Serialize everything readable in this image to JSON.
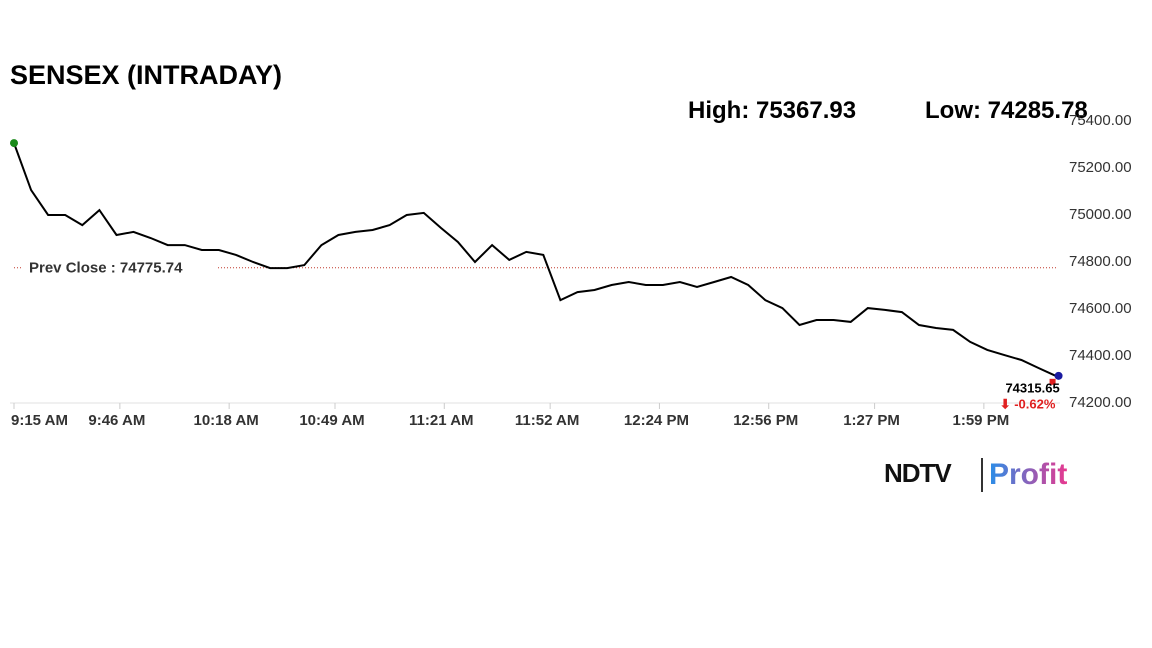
{
  "chart_data": {
    "type": "line",
    "title": "SENSEX (INTRADAY)",
    "high_label": "High:",
    "high": 75367.93,
    "low_label": "Low:",
    "low": 74285.78,
    "prev_close_label": "Prev Close :",
    "prev_close": 74775.74,
    "change_label": "⬇ -0.62%",
    "color": "#000000",
    "x": [
      "9:15 AM",
      "9:20 AM",
      "9:25 AM",
      "9:30 AM",
      "9:35 AM",
      "9:40 AM",
      "9:45 AM",
      "9:50 AM",
      "9:55 AM",
      "10:00 AM",
      "10:05 AM",
      "10:10 AM",
      "10:15 AM",
      "10:20 AM",
      "10:25 AM",
      "10:30 AM",
      "10:35 AM",
      "10:40 AM",
      "10:45 AM",
      "10:50 AM",
      "10:55 AM",
      "11:00 AM",
      "11:05 AM",
      "11:10 AM",
      "11:15 AM",
      "11:20 AM",
      "11:25 AM",
      "11:30 AM",
      "11:35 AM",
      "11:40 AM",
      "11:45 AM",
      "11:50 AM",
      "11:55 AM",
      "12:00 PM",
      "12:05 PM",
      "12:10 PM",
      "12:15 PM",
      "12:20 PM",
      "12:25 PM",
      "12:30 PM",
      "12:35 PM",
      "12:40 PM",
      "12:45 PM",
      "12:50 PM",
      "12:55 PM",
      "1:00 PM",
      "1:05 PM",
      "1:10 PM",
      "1:15 PM",
      "1:20 PM",
      "1:25 PM",
      "1:30 PM",
      "1:35 PM",
      "1:40 PM",
      "1:45 PM",
      "1:50 PM",
      "1:55 PM",
      "2:00 PM",
      "2:05 PM",
      "2:10 PM",
      "2:15 PM",
      "2:20 PM"
    ],
    "values": [
      75306,
      75106,
      75000,
      75000,
      74957,
      75021,
      74915,
      74928,
      74902,
      74872,
      74872,
      74851,
      74851,
      74830,
      74800,
      74774,
      74774,
      74787,
      74872,
      74915,
      74928,
      74936,
      74957,
      75000,
      75009,
      74945,
      74885,
      74800,
      74872,
      74809,
      74843,
      74830,
      74638,
      74672,
      74681,
      74702,
      74715,
      74702,
      74702,
      74715,
      74694,
      74715,
      74736,
      74702,
      74638,
      74604,
      74532,
      74553,
      74553,
      74545,
      74604,
      74596,
      74587,
      74532,
      74519,
      74511,
      74460,
      74426,
      74404,
      74383,
      74349,
      74315.65
    ],
    "xticks": [
      "9:15 AM",
      "9:46 AM",
      "10:18 AM",
      "10:49 AM",
      "11:21 AM",
      "11:52 AM",
      "12:24 PM",
      "12:56 PM",
      "1:27 PM",
      "1:59 PM"
    ],
    "ylim": [
      74200,
      75400
    ],
    "yticks": [
      {
        "value": 74200,
        "label": "74200.00"
      },
      {
        "value": 74400,
        "label": "74400.00"
      },
      {
        "value": 74600,
        "label": "74600.00"
      },
      {
        "value": 74800,
        "label": "74800.00"
      },
      {
        "value": 75000,
        "label": "75000.00"
      },
      {
        "value": 75200,
        "label": "75200.00"
      },
      {
        "value": 75400,
        "label": "75400.00"
      }
    ],
    "branding": {
      "left": "NDTV",
      "right": "Profit"
    }
  }
}
